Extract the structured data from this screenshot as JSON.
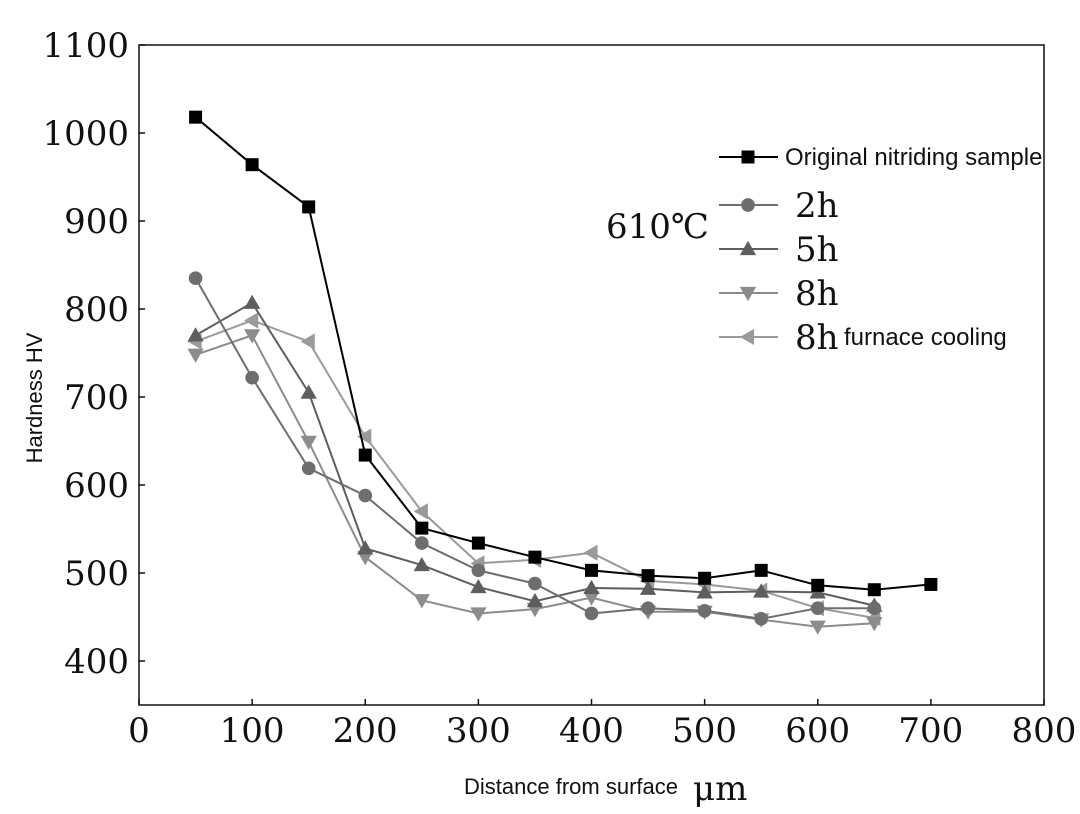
{
  "chart_data": {
    "type": "line",
    "xlabel": "Distance from surface",
    "xunit": "μm",
    "ylabel": "Hardness HV",
    "annotation": "610℃",
    "xlim": [
      0,
      800
    ],
    "ylim": [
      350,
      1100
    ],
    "xticks": [
      0,
      100,
      200,
      300,
      400,
      500,
      600,
      700,
      800
    ],
    "yticks": [
      400,
      500,
      600,
      700,
      800,
      900,
      1000,
      1100
    ],
    "grid": false,
    "legend_position": "top-right",
    "series": [
      {
        "name": "Original nitriding sample",
        "marker": "square",
        "color": "#000000",
        "x": [
          50,
          100,
          150,
          200,
          250,
          300,
          350,
          400,
          450,
          500,
          550,
          600,
          650,
          700
        ],
        "y": [
          1018,
          964,
          916,
          634,
          551,
          534,
          518,
          503,
          497,
          494,
          503,
          486,
          481,
          487
        ]
      },
      {
        "name": "2h",
        "marker": "circle",
        "color": "#6e6e6e",
        "x": [
          50,
          100,
          150,
          200,
          250,
          300,
          350,
          400,
          450,
          500,
          550,
          600,
          650
        ],
        "y": [
          835,
          722,
          619,
          588,
          534,
          503,
          488,
          454,
          460,
          457,
          448,
          460,
          460
        ]
      },
      {
        "name": "5h",
        "marker": "triangle-up",
        "color": "#5e5e5e",
        "x": [
          50,
          100,
          150,
          200,
          250,
          300,
          350,
          400,
          450,
          500,
          550,
          600,
          650
        ],
        "y": [
          770,
          807,
          705,
          528,
          509,
          484,
          468,
          483,
          482,
          478,
          479,
          478,
          463
        ]
      },
      {
        "name": "8h",
        "marker": "triangle-down",
        "color": "#8c8c8c",
        "x": [
          50,
          100,
          150,
          200,
          250,
          300,
          350,
          400,
          450,
          500,
          550,
          600,
          650
        ],
        "y": [
          748,
          770,
          649,
          518,
          469,
          454,
          459,
          472,
          456,
          456,
          447,
          439,
          443
        ]
      },
      {
        "name": "8h",
        "name_suffix": "furnace cooling",
        "marker": "triangle-left",
        "color": "#9a9a9a",
        "x": [
          50,
          100,
          150,
          200,
          250,
          300,
          350,
          400,
          450,
          500,
          550,
          600,
          650
        ],
        "y": [
          763,
          787,
          763,
          655,
          570,
          511,
          515,
          523,
          491,
          487,
          480,
          460,
          449
        ]
      }
    ]
  }
}
